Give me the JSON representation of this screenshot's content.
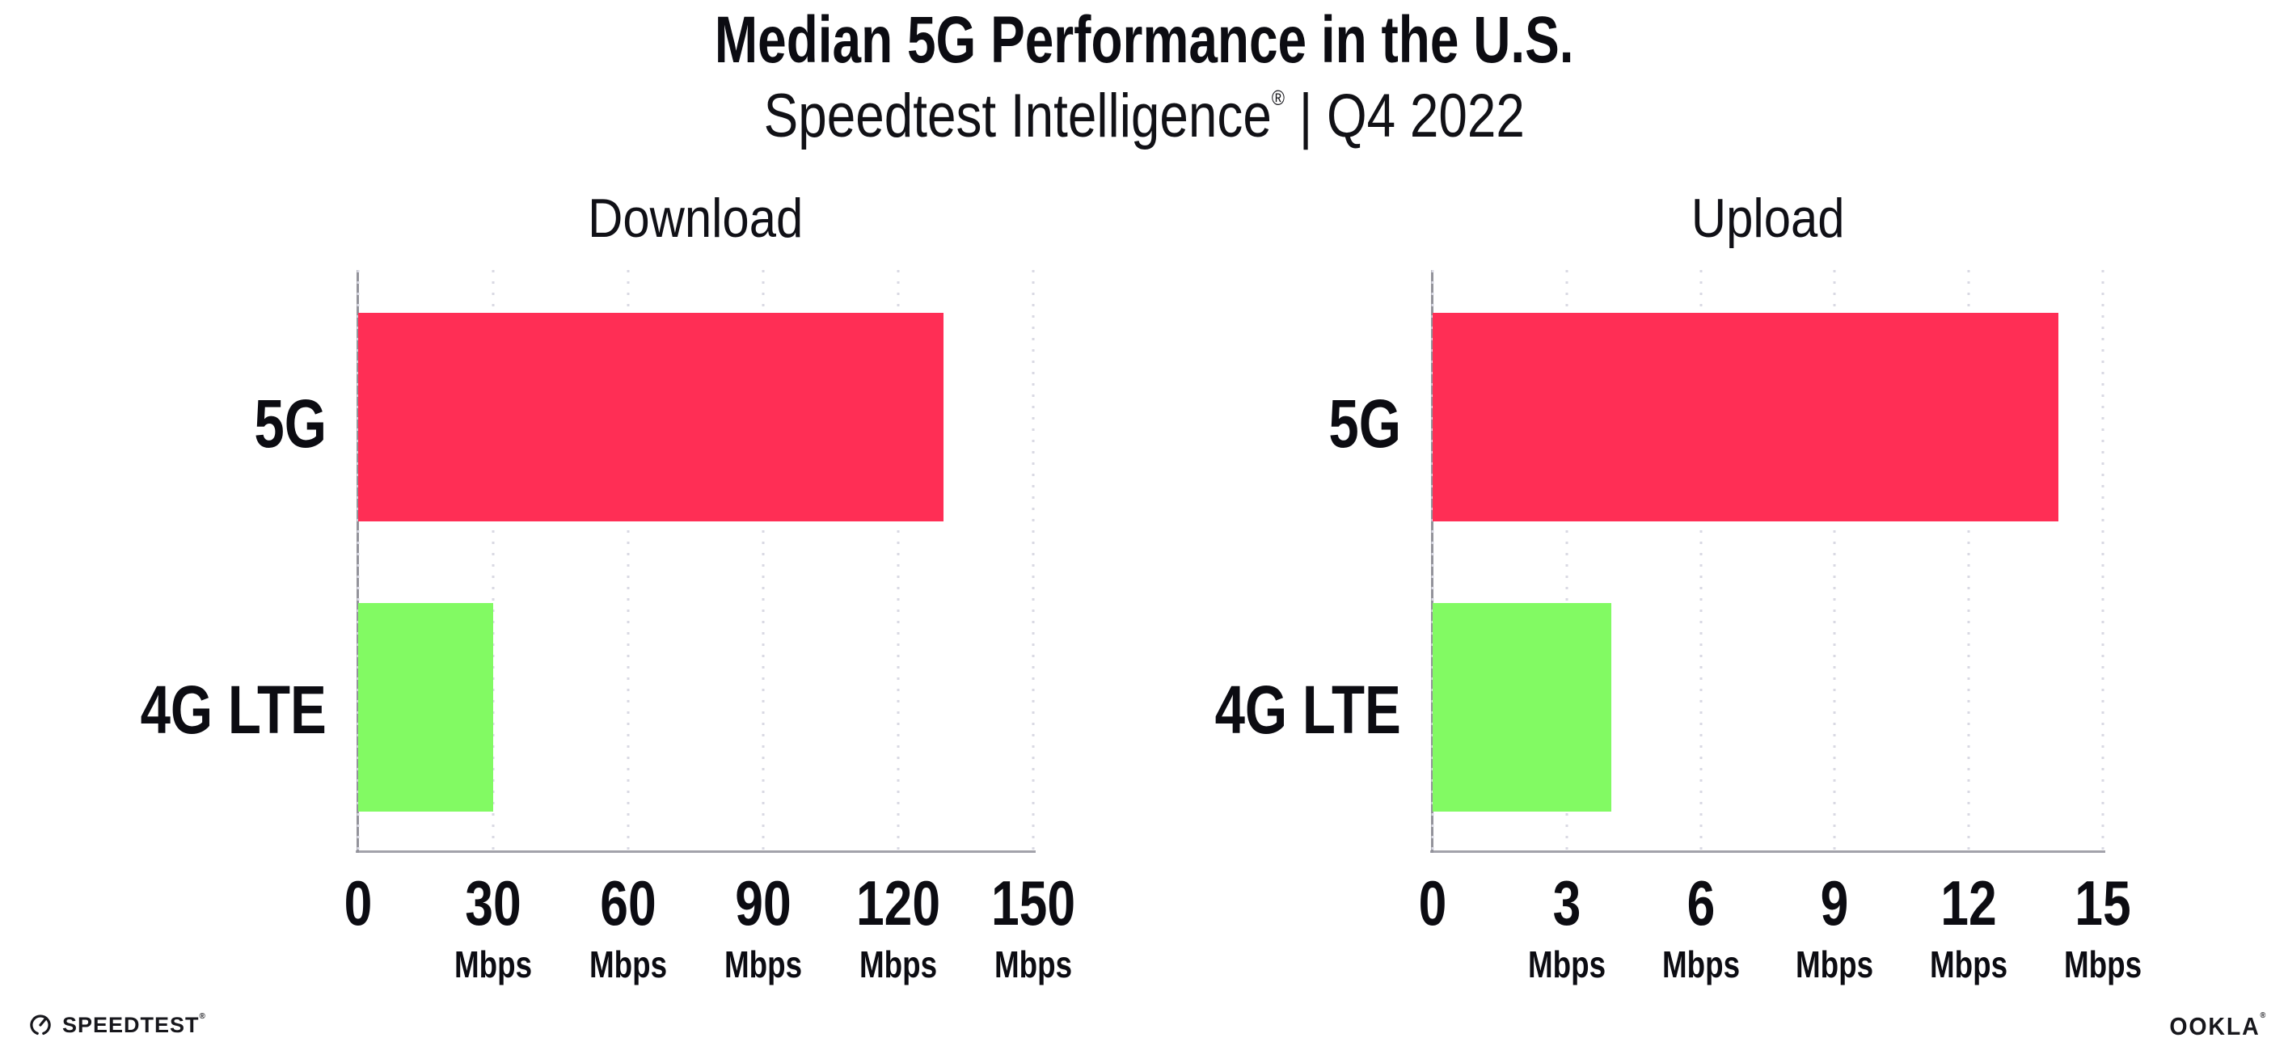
{
  "header": {
    "title": "Median 5G Performance in the U.S.",
    "subtitle_product": "Speedtest Intelligence",
    "subtitle_reg": "®",
    "subtitle_period": " | Q4 2022"
  },
  "chart_data": [
    {
      "type": "bar",
      "orientation": "horizontal",
      "title": "Download",
      "categories": [
        "5G",
        "4G LTE"
      ],
      "values": [
        130,
        30
      ],
      "unit": "Mbps",
      "xlim": [
        0,
        150
      ],
      "xticks": [
        0,
        30,
        60,
        90,
        120,
        150
      ],
      "xtick_unit": "Mbps",
      "grid": "dotted-vertical",
      "legend": "none",
      "bar_colors": [
        "#ff2e55",
        "#82fa63"
      ]
    },
    {
      "type": "bar",
      "orientation": "horizontal",
      "title": "Upload",
      "categories": [
        "5G",
        "4G LTE"
      ],
      "values": [
        14,
        4
      ],
      "unit": "Mbps",
      "xlim": [
        0,
        15
      ],
      "xticks": [
        0,
        3,
        6,
        9,
        12,
        15
      ],
      "xtick_unit": "Mbps",
      "grid": "dotted-vertical",
      "legend": "none",
      "bar_colors": [
        "#ff2e55",
        "#82fa63"
      ]
    }
  ],
  "footer": {
    "speedtest_wordmark": "SPEEDTEST",
    "speedtest_reg": "®",
    "ookla_wordmark": "OOKLA",
    "ookla_reg": "®"
  },
  "colors": {
    "bar_5g": "#ff2e55",
    "bar_4g_lte": "#82fa63",
    "gridline": "#d9d9e3",
    "axis_left_spine": "#93939b",
    "axis_bottom_spine": "#a2a2aa",
    "text": "#0c0c12"
  }
}
